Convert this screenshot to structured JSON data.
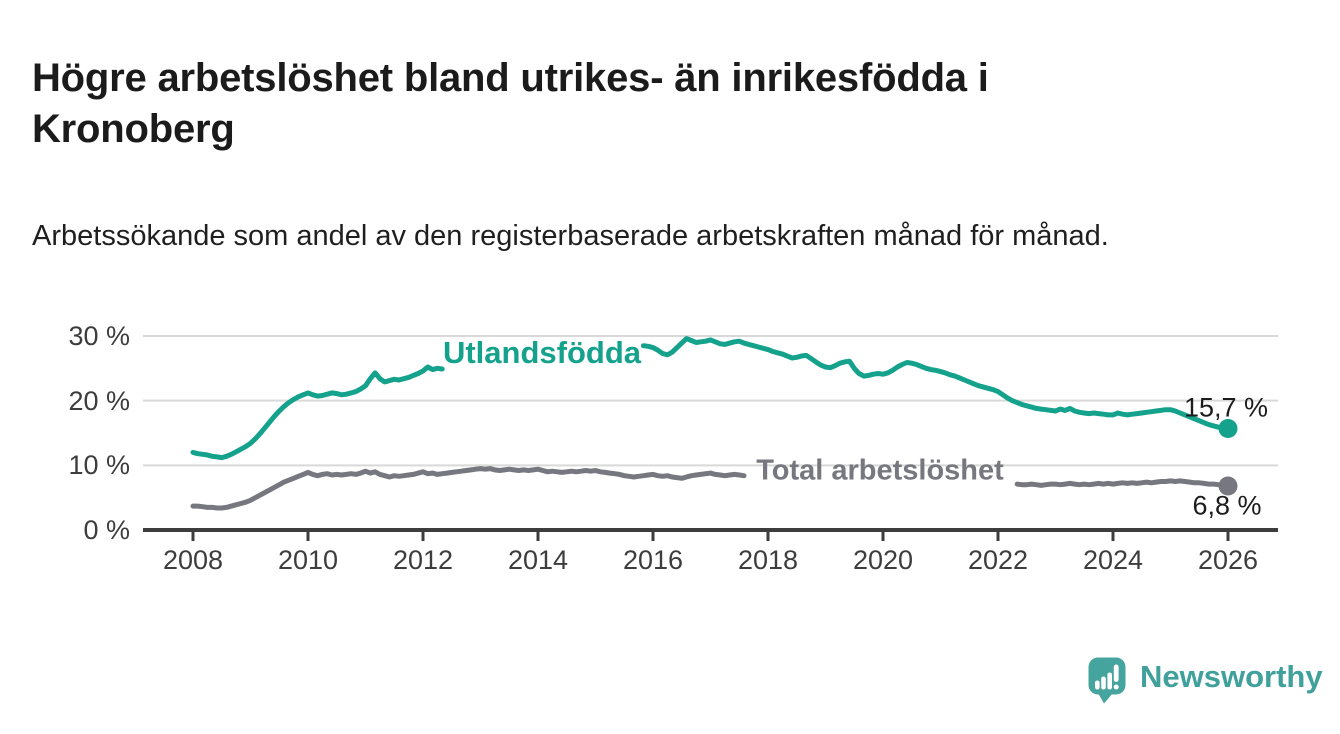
{
  "header": {
    "title": "Högre arbetslöshet bland utrikes- än inrikesfödda i Kronoberg",
    "subtitle": "Arbetssökande som andel av den registerbaserade arbetskraften månad för månad."
  },
  "branding": {
    "logo_text": "Newsworthy"
  },
  "colors": {
    "accent_teal": "#15a28c",
    "gray_series": "#77777f",
    "axis": "#3d3d3d",
    "gridline": "#d9d9d9",
    "text_dark": "#1b1b1b",
    "logo_teal": "#46a49e"
  },
  "chart_data": {
    "type": "line",
    "title": "Högre arbetslöshet bland utrikes- än inrikesfödda i Kronoberg",
    "subtitle": "Arbetssökande som andel av den registerbaserade arbetskraften månad för månad.",
    "unit": "%",
    "grid": "horizontal",
    "legend_position": "inline-labels-on-lines",
    "xlim": [
      2007.13,
      2026.87
    ],
    "ylim": [
      0,
      30
    ],
    "x_ticks": [
      {
        "label": "2008",
        "value": 2008
      },
      {
        "label": "2010",
        "value": 2010
      },
      {
        "label": "2012",
        "value": 2012
      },
      {
        "label": "2014",
        "value": 2014
      },
      {
        "label": "2016",
        "value": 2016
      },
      {
        "label": "2018",
        "value": 2018
      },
      {
        "label": "2020",
        "value": 2020
      },
      {
        "label": "2022",
        "value": 2022
      },
      {
        "label": "2024",
        "value": 2024
      },
      {
        "label": "2026",
        "value": 2026
      }
    ],
    "y_ticks": [
      {
        "label": "30 %",
        "value": 30
      },
      {
        "label": "20 %",
        "value": 20
      },
      {
        "label": "10 %",
        "value": 10
      },
      {
        "label": "0 %",
        "value": 0
      }
    ],
    "series": [
      {
        "id": "utlandsfodda",
        "name": "Utlandsfödda",
        "color": "#15a28c",
        "end_label": "15,7 %",
        "end_value": 15.7,
        "note": "line hidden behind its name label between mid-2012 and late 2015",
        "segments": [
          {
            "start_year": 2008.0,
            "step_months": 1,
            "values": [
              12.0,
              11.8,
              11.7,
              11.6,
              11.4,
              11.3,
              11.2,
              11.4,
              11.7,
              12.1,
              12.5,
              12.9,
              13.4,
              14.1,
              14.9,
              15.8,
              16.7,
              17.6,
              18.4,
              19.1,
              19.7,
              20.2,
              20.6,
              20.9,
              21.2,
              20.9,
              20.7,
              20.8,
              21.0,
              21.2,
              21.1,
              20.9,
              21.0,
              21.2,
              21.4,
              21.8,
              22.3,
              23.4,
              24.3,
              23.4,
              22.9,
              23.1,
              23.3,
              23.2,
              23.4,
              23.6,
              23.9,
              24.2,
              24.6,
              25.2,
              24.8,
              25.0,
              24.9
            ]
          },
          {
            "start_year": 2015.8333,
            "step_months": 1,
            "values": [
              28.5,
              28.4,
              28.2,
              27.8,
              27.3,
              27.1,
              27.5,
              28.2,
              28.9,
              29.6,
              29.3,
              29.0,
              29.1,
              29.2,
              29.4,
              29.1,
              28.8,
              28.7,
              28.9,
              29.1,
              29.2,
              28.9,
              28.7,
              28.5,
              28.3,
              28.1,
              27.9,
              27.6,
              27.4,
              27.2,
              26.9,
              26.6,
              26.7,
              26.9,
              27.0,
              26.5,
              26.0,
              25.5,
              25.2,
              25.1,
              25.4,
              25.8,
              26.0,
              26.1,
              25.0,
              24.2,
              23.8,
              23.9,
              24.1,
              24.2,
              24.1,
              24.3,
              24.7,
              25.2,
              25.6,
              25.9,
              25.8,
              25.6,
              25.3,
              25.0,
              24.8,
              24.7,
              24.5,
              24.3,
              24.0,
              23.8,
              23.5,
              23.2,
              22.9,
              22.6,
              22.3,
              22.1,
              21.9,
              21.7,
              21.4,
              20.9,
              20.4,
              20.0,
              19.7,
              19.4,
              19.2,
              19.0,
              18.8,
              18.7,
              18.6,
              18.5,
              18.4,
              18.7,
              18.5,
              18.8,
              18.4,
              18.2,
              18.1,
              18.0,
              18.1,
              18.0,
              17.9,
              17.8,
              17.8,
              18.1,
              17.9,
              17.8,
              17.9,
              18.0,
              18.1,
              18.2,
              18.3,
              18.4,
              18.5,
              18.6,
              18.6,
              18.4,
              18.1,
              17.8,
              17.5,
              17.2,
              16.9,
              16.6,
              16.3,
              16.1,
              15.9,
              15.8,
              15.7
            ]
          }
        ]
      },
      {
        "id": "total",
        "name": "Total arbetslöshet",
        "color": "#77777f",
        "end_label": "6,8 %",
        "end_value": 6.8,
        "note": "line hidden behind its name label between late 2017 and spring 2022",
        "segments": [
          {
            "start_year": 2008.0,
            "step_months": 1,
            "values": [
              3.7,
              3.7,
              3.6,
              3.5,
              3.5,
              3.4,
              3.4,
              3.5,
              3.7,
              3.9,
              4.1,
              4.3,
              4.6,
              5.0,
              5.4,
              5.8,
              6.2,
              6.6,
              7.0,
              7.4,
              7.7,
              8.0,
              8.3,
              8.6,
              8.9,
              8.6,
              8.4,
              8.6,
              8.7,
              8.5,
              8.6,
              8.5,
              8.6,
              8.7,
              8.6,
              8.8,
              9.1,
              8.8,
              9.0,
              8.6,
              8.4,
              8.2,
              8.4,
              8.3,
              8.4,
              8.5,
              8.6,
              8.8,
              9.0,
              8.7,
              8.8,
              8.6,
              8.7,
              8.8,
              8.9,
              9.0,
              9.1,
              9.2,
              9.3,
              9.4,
              9.5,
              9.4,
              9.5,
              9.3,
              9.2,
              9.3,
              9.4,
              9.3,
              9.2,
              9.3,
              9.2,
              9.3,
              9.4,
              9.2,
              9.0,
              9.1,
              9.0,
              8.9,
              9.0,
              9.1,
              9.0,
              9.1,
              9.2,
              9.1,
              9.2,
              9.0,
              8.9,
              8.8,
              8.7,
              8.6,
              8.4,
              8.3,
              8.2,
              8.3,
              8.4,
              8.5,
              8.6,
              8.4,
              8.3,
              8.4,
              8.2,
              8.1,
              8.0,
              8.2,
              8.4,
              8.5,
              8.6,
              8.7,
              8.8,
              8.6,
              8.5,
              8.4,
              8.5,
              8.6,
              8.5,
              8.4
            ]
          },
          {
            "start_year": 2022.3333,
            "step_months": 1,
            "values": [
              7.1,
              7.0,
              7.0,
              7.1,
              7.0,
              6.9,
              7.0,
              7.1,
              7.1,
              7.0,
              7.1,
              7.2,
              7.1,
              7.0,
              7.1,
              7.0,
              7.1,
              7.2,
              7.1,
              7.2,
              7.1,
              7.2,
              7.3,
              7.2,
              7.3,
              7.2,
              7.3,
              7.4,
              7.3,
              7.4,
              7.5,
              7.5,
              7.6,
              7.5,
              7.6,
              7.5,
              7.4,
              7.3,
              7.3,
              7.2,
              7.1,
              7.1,
              7.0,
              6.9,
              6.8
            ]
          }
        ]
      }
    ]
  }
}
